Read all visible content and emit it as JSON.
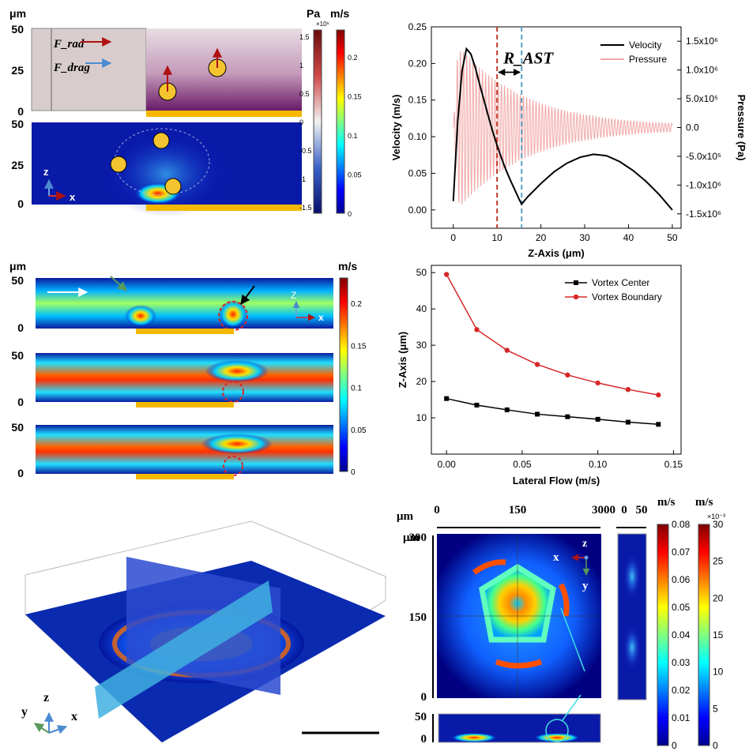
{
  "panel_tl": {
    "top": {
      "unit_left": "μm",
      "y_ticks": [
        "50",
        "25",
        "0"
      ],
      "frad": "F_rad",
      "fdrag": "F_drag"
    },
    "bottom": {
      "y_ticks": [
        "50",
        "25",
        "0"
      ],
      "axis_z": "z",
      "axis_x": "x"
    },
    "colorbar_pa": {
      "unit": "Pa",
      "exponent": "×10⁶",
      "ticks": [
        "1.5",
        "1",
        "0.5",
        "0",
        "-0.5",
        "-1",
        "-1.5"
      ]
    },
    "colorbar_ms": {
      "unit": "m/s",
      "ticks": [
        "0.2",
        "0.15",
        "0.1",
        "0.05",
        "0"
      ]
    }
  },
  "panel_ml": {
    "unit": "μm",
    "y_ticks": [
      "50",
      "0"
    ],
    "colorbar": {
      "unit": "m/s",
      "ticks": [
        "0.2",
        "0.15",
        "0.1",
        "0.05",
        "0"
      ]
    },
    "axis_z": "Z",
    "axis_x": "x"
  },
  "panel_bl": {
    "axis_z": "z",
    "axis_y": "y",
    "axis_x": "x"
  },
  "panel_br": {
    "unit_top": "μm",
    "x_ticks": [
      "0",
      "150",
      "3000",
      "0",
      "50"
    ],
    "unit_left": "μm",
    "y_ticks": [
      "300",
      "150",
      "0"
    ],
    "side_y_ticks": [
      "50",
      "0"
    ],
    "axis_x": "x",
    "axis_z": "z",
    "axis_y": "y",
    "colorbar1": {
      "unit": "m/s",
      "ticks": [
        "0.08",
        "0.07",
        "0.06",
        "0.05",
        "0.04",
        "0.03",
        "0.02",
        "0.01",
        "0"
      ]
    },
    "colorbar2": {
      "unit": "m/s",
      "exponent": "×10⁻³",
      "ticks": [
        "30",
        "25",
        "20",
        "15",
        "10",
        "5",
        "0"
      ]
    }
  },
  "chart_data": [
    {
      "type": "line",
      "xlabel": "Z-Axis (μm)",
      "ylabel": "Velocity (m/s)",
      "y2label": "Pressure (Pa)",
      "xlim": [
        -5,
        52
      ],
      "ylim": [
        -0.025,
        0.25
      ],
      "y2lim": [
        -1.75,
        1.75
      ],
      "x_ticks": [
        "0",
        "10",
        "20",
        "30",
        "40",
        "50"
      ],
      "y_ticks": [
        "0.00",
        "0.05",
        "0.10",
        "0.15",
        "0.20",
        "0.25"
      ],
      "y2_ticks": [
        "1.5x10⁶",
        "1.0x10⁶",
        "5.0x10⁵",
        "0.0",
        "-5.0x10⁵",
        "-1.0x10⁶",
        "-1.5x10⁶"
      ],
      "y2_tick_values": [
        1.5,
        1.0,
        0.5,
        0.0,
        -0.5,
        -1.0,
        -1.5
      ],
      "annotation": "R_AST",
      "vlines": [
        {
          "x": 10,
          "color": "#c0392b"
        },
        {
          "x": 15.6,
          "color": "#5aa0c8"
        }
      ],
      "legend": "top-right",
      "series": [
        {
          "name": "Velocity",
          "color": "#000000",
          "axis": "left",
          "x": [
            0,
            1,
            2,
            3,
            4,
            5,
            6,
            7,
            8,
            9,
            10,
            11,
            12,
            13,
            14,
            15,
            15.6,
            17,
            20,
            23,
            26,
            29,
            32,
            35,
            38,
            41,
            44,
            47,
            50
          ],
          "y": [
            0.012,
            0.12,
            0.19,
            0.22,
            0.213,
            0.195,
            0.172,
            0.15,
            0.128,
            0.107,
            0.088,
            0.071,
            0.055,
            0.041,
            0.028,
            0.015,
            0.008,
            0.018,
            0.036,
            0.052,
            0.064,
            0.072,
            0.076,
            0.074,
            0.066,
            0.054,
            0.039,
            0.021,
            0.0
          ]
        },
        {
          "name": "Pressure",
          "color": "#f2a7a7",
          "axis": "right",
          "envelope": {
            "x": [
              0,
              1,
              2,
              5,
              10,
              15,
              20,
              25,
              30,
              35,
              40,
              45,
              50
            ],
            "amp": [
              0.0,
              1.3,
              1.35,
              1.1,
              0.8,
              0.58,
              0.42,
              0.3,
              0.22,
              0.16,
              0.12,
              0.09,
              0.07
            ]
          }
        }
      ]
    },
    {
      "type": "line",
      "xlabel": "Lateral Flow (m/s)",
      "ylabel": "Z-Axis (μm)",
      "xlim": [
        -0.01,
        0.155
      ],
      "ylim": [
        0,
        52
      ],
      "x_ticks": [
        "0.00",
        "0.05",
        "0.10",
        "0.15"
      ],
      "y_ticks": [
        "10",
        "20",
        "30",
        "40",
        "50"
      ],
      "legend": "top-right",
      "series": [
        {
          "name": "Vortex Center",
          "color": "#000000",
          "marker": "square",
          "x": [
            0,
            0.02,
            0.04,
            0.06,
            0.08,
            0.1,
            0.12,
            0.14
          ],
          "y": [
            15.3,
            13.5,
            12.2,
            11.0,
            10.3,
            9.6,
            8.8,
            8.2
          ]
        },
        {
          "name": "Vortex Boundary",
          "color": "#d62728",
          "marker": "circle",
          "x": [
            0,
            0.02,
            0.04,
            0.06,
            0.08,
            0.1,
            0.12,
            0.14
          ],
          "y": [
            49.5,
            34.3,
            28.6,
            24.7,
            21.8,
            19.6,
            17.8,
            16.3
          ]
        }
      ]
    }
  ]
}
